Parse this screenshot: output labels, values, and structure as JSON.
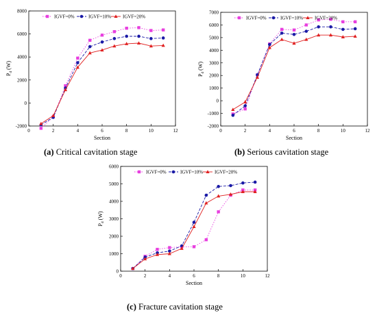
{
  "chart_data": [
    {
      "type": "line",
      "title": "",
      "caption": {
        "label": "(a)",
        "text": " Critical cavitation stage"
      },
      "xlabel": "Section",
      "ylabel": "P",
      "ylabel_sub": "d",
      "ylabel_unit": " (W)",
      "xlim": [
        0,
        12
      ],
      "ylim": [
        -2000,
        8000
      ],
      "xticks": [
        0,
        2,
        4,
        6,
        8,
        10,
        12
      ],
      "yticks": [
        -2000,
        0,
        2000,
        4000,
        6000,
        8000
      ],
      "legend_position": "top",
      "x": [
        1,
        2,
        3,
        4,
        5,
        6,
        7,
        8,
        9,
        10,
        11
      ],
      "series": [
        {
          "name": "IGVF=0%",
          "color": "#e83fdf",
          "marker": "square",
          "dash": "1.5,2",
          "values": [
            -2200,
            -1200,
            1500,
            3900,
            5450,
            5900,
            6200,
            6500,
            6550,
            6300,
            6350
          ]
        },
        {
          "name": "IGVF=10%",
          "color": "#1a1aa6",
          "marker": "circle",
          "dash": "4,2",
          "values": [
            -1900,
            -1250,
            1300,
            3500,
            4900,
            5300,
            5600,
            5800,
            5800,
            5600,
            5650
          ]
        },
        {
          "name": "IGVF=20%",
          "color": "#e02020",
          "marker": "triangle",
          "dash": "",
          "values": [
            -1800,
            -1100,
            1150,
            3100,
            4350,
            4600,
            4950,
            5150,
            5200,
            4950,
            5000
          ]
        }
      ]
    },
    {
      "type": "line",
      "title": "",
      "caption": {
        "label": "(b)",
        "text": " Serious cavitation stage"
      },
      "xlabel": "Section",
      "ylabel": "P",
      "ylabel_sub": "d",
      "ylabel_unit": " (W)",
      "xlim": [
        0,
        12
      ],
      "ylim": [
        -2000,
        7000
      ],
      "xticks": [
        0,
        2,
        4,
        6,
        8,
        10,
        12
      ],
      "yticks": [
        -2000,
        -1000,
        0,
        1000,
        2000,
        3000,
        4000,
        5000,
        6000,
        7000
      ],
      "legend_position": "top",
      "x": [
        1,
        2,
        3,
        4,
        5,
        6,
        7,
        8,
        9,
        10,
        11
      ],
      "series": [
        {
          "name": "IGVF=0%",
          "color": "#e83fdf",
          "marker": "square",
          "dash": "1.5,2",
          "values": [
            -1050,
            -650,
            2050,
            4500,
            5650,
            5600,
            6000,
            6400,
            6450,
            6250,
            6250
          ]
        },
        {
          "name": "IGVF=10%",
          "color": "#1a1aa6",
          "marker": "circle",
          "dash": "4,2",
          "values": [
            -1150,
            -400,
            2050,
            4450,
            5350,
            5250,
            5500,
            5850,
            5850,
            5650,
            5700
          ]
        },
        {
          "name": "IGVF=20%",
          "color": "#e02020",
          "marker": "triangle",
          "dash": "",
          "values": [
            -700,
            -100,
            1850,
            4200,
            4850,
            4550,
            4850,
            5200,
            5200,
            5050,
            5100
          ]
        }
      ]
    },
    {
      "type": "line",
      "title": "",
      "caption": {
        "label": "(c)",
        "text": " Fracture cavitation stage"
      },
      "xlabel": "Section",
      "ylabel": "P",
      "ylabel_sub": "d",
      "ylabel_unit": " (W)",
      "xlim": [
        0,
        12
      ],
      "ylim": [
        0,
        6000
      ],
      "xticks": [
        0,
        2,
        4,
        6,
        8,
        10,
        12
      ],
      "yticks": [
        0,
        1000,
        2000,
        3000,
        4000,
        5000,
        6000
      ],
      "legend_position": "top",
      "x": [
        1,
        2,
        3,
        4,
        5,
        6,
        7,
        8,
        9,
        10,
        11
      ],
      "series": [
        {
          "name": "IGVF=0%",
          "color": "#e83fdf",
          "marker": "square",
          "dash": "1.5,2",
          "values": [
            150,
            850,
            1250,
            1350,
            1400,
            1400,
            1800,
            3400,
            4350,
            4650,
            4650
          ]
        },
        {
          "name": "IGVF=10%",
          "color": "#1a1aa6",
          "marker": "circle",
          "dash": "4,2",
          "values": [
            150,
            800,
            1050,
            1150,
            1450,
            2800,
            4350,
            4850,
            4900,
            5050,
            5100
          ]
        },
        {
          "name": "IGVF=20%",
          "color": "#e02020",
          "marker": "triangle",
          "dash": "",
          "values": [
            150,
            700,
            950,
            1000,
            1300,
            2550,
            3900,
            4300,
            4400,
            4550,
            4550
          ]
        }
      ]
    }
  ]
}
